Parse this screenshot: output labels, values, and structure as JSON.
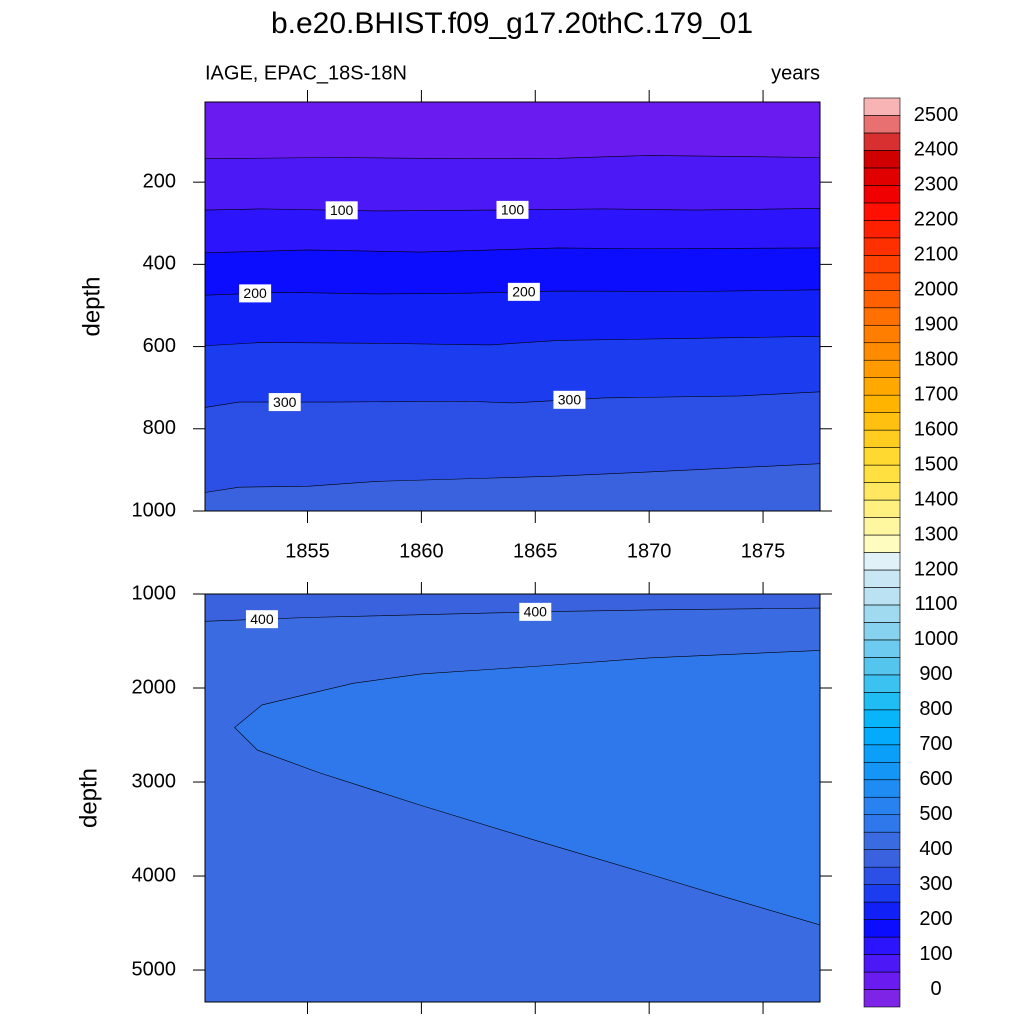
{
  "title": "b.e20.BHIST.f09_g17.20thC.179_01",
  "chart_data": [
    {
      "type": "contour",
      "subtitle_left": "IAGE, EPAC_18S-18N",
      "subtitle_right": "years",
      "ylabel": "depth",
      "xlim": [
        1850.5,
        1877.5
      ],
      "xticks": [
        1855,
        1860,
        1865,
        1870,
        1875
      ],
      "xtick_labels": true,
      "ylim": [
        5,
        1000
      ],
      "yticks": [
        200,
        400,
        600,
        800,
        1000
      ],
      "contours": [
        {
          "level": 50,
          "x": [
            1850.5,
            1856,
            1862,
            1866,
            1870,
            1877.5
          ],
          "y": [
            143,
            140,
            143,
            142,
            135,
            140
          ]
        },
        {
          "level": 100,
          "label_x": [
            1856.5,
            1864
          ],
          "x": [
            1850.5,
            1853,
            1858,
            1863,
            1868,
            1872,
            1877.5
          ],
          "y": [
            268,
            265,
            270,
            268,
            265,
            268,
            264
          ]
        },
        {
          "level": 150,
          "x": [
            1850.5,
            1855,
            1860,
            1866,
            1870,
            1877.5
          ],
          "y": [
            372,
            365,
            370,
            360,
            362,
            360
          ]
        },
        {
          "level": 200,
          "label_x": [
            1852.7,
            1864.5
          ],
          "x": [
            1850.5,
            1854,
            1858,
            1862,
            1866,
            1872,
            1877.5
          ],
          "y": [
            475,
            468,
            472,
            470,
            465,
            466,
            462
          ]
        },
        {
          "level": 250,
          "x": [
            1850.5,
            1853,
            1858,
            1863,
            1866,
            1872,
            1877.5
          ],
          "y": [
            598,
            590,
            592,
            596,
            585,
            580,
            575
          ]
        },
        {
          "level": 300,
          "label_x": [
            1854,
            1866.5
          ],
          "x": [
            1850.5,
            1852,
            1856,
            1862,
            1864,
            1868,
            1874,
            1877.5
          ],
          "y": [
            748,
            735,
            735,
            733,
            737,
            725,
            720,
            710
          ]
        },
        {
          "level": 350,
          "x": [
            1850.5,
            1852,
            1855,
            1858,
            1863,
            1866,
            1870,
            1877.5
          ],
          "y": [
            955,
            942,
            940,
            928,
            920,
            915,
            905,
            885
          ]
        }
      ]
    },
    {
      "type": "contour",
      "ylabel": "depth",
      "xlim": [
        1850.5,
        1877.5
      ],
      "xticks": [
        1855,
        1860,
        1865,
        1870,
        1875
      ],
      "xtick_labels": false,
      "ylim": [
        1000,
        5340
      ],
      "yticks": [
        1000,
        2000,
        3000,
        4000,
        5000
      ],
      "contours": [
        {
          "level": 400,
          "label_x": [
            1853,
            1865
          ],
          "x": [
            1850.5,
            1855,
            1860,
            1865,
            1870,
            1877.5
          ],
          "y": [
            1290,
            1250,
            1220,
            1190,
            1170,
            1150
          ]
        },
        {
          "level": 450,
          "x": [
            1877.5,
            1870,
            1865,
            1860,
            1857,
            1853,
            1851.8,
            1852.8,
            1855.5,
            1860,
            1865,
            1870,
            1873,
            1877.5
          ],
          "y": [
            1600,
            1680,
            1770,
            1850,
            1950,
            2180,
            2420,
            2660,
            2900,
            3250,
            3620,
            3980,
            4200,
            4520
          ]
        }
      ]
    }
  ],
  "colorbar": {
    "levels": [
      0,
      50,
      100,
      150,
      200,
      250,
      300,
      350,
      400,
      450,
      500,
      550,
      600,
      650,
      700,
      750,
      800,
      850,
      900,
      950,
      1000,
      1050,
      1100,
      1150,
      1200,
      1250,
      1300,
      1350,
      1400,
      1450,
      1500,
      1550,
      1600,
      1650,
      1700,
      1750,
      1800,
      1850,
      1900,
      1950,
      2000,
      2050,
      2100,
      2150,
      2200,
      2250,
      2300,
      2350,
      2400,
      2450,
      2500
    ],
    "ticks": [
      0,
      100,
      200,
      300,
      400,
      500,
      600,
      700,
      800,
      900,
      1000,
      1100,
      1200,
      1300,
      1400,
      1500,
      1600,
      1700,
      1800,
      1900,
      2000,
      2100,
      2200,
      2300,
      2400,
      2500
    ],
    "colors": [
      "#7e24e6",
      "#6a1cf0",
      "#4c18f6",
      "#2c14fc",
      "#0c0cff",
      "#1220f8",
      "#1c3cf0",
      "#2c50e6",
      "#3a62de",
      "#3b6be0",
      "#2f78eb",
      "#2882ef",
      "#1e8cf3",
      "#1496f6",
      "#0aa0f9",
      "#04aafc",
      "#08b4fa",
      "#20bcf4",
      "#3cc2f0",
      "#54c6ee",
      "#6ccbee",
      "#86d2ef",
      "#a0daf0",
      "#bae2f2",
      "#c8e6f4",
      "#e0f2f8",
      "#fffcc0",
      "#fff6a0",
      "#fff080",
      "#ffe860",
      "#ffe040",
      "#ffd830",
      "#ffcc20",
      "#ffc010",
      "#ffb400",
      "#ffa800",
      "#ff9a00",
      "#ff8c00",
      "#ff7e00",
      "#ff7000",
      "#ff6000",
      "#ff5000",
      "#ff4000",
      "#ff3000",
      "#ff2000",
      "#ff1000",
      "#f00000",
      "#e00000",
      "#d00000",
      "#d83030",
      "#e87070",
      "#f8b4b4"
    ]
  }
}
